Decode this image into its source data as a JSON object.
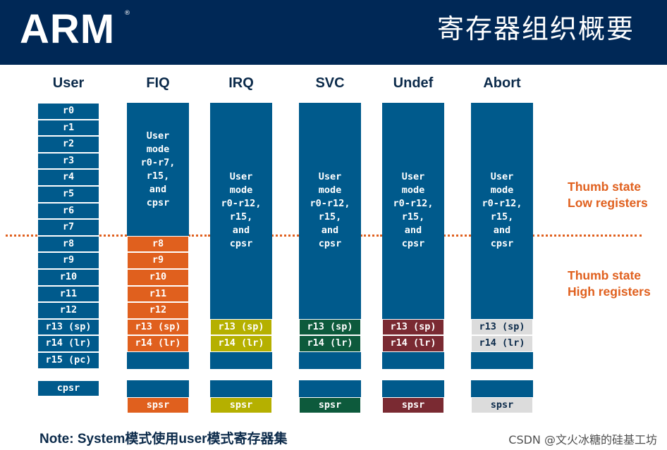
{
  "header": {
    "logo_text": "ARM",
    "logo_mark": "®",
    "title": "寄存器组织概要",
    "background": "#002856"
  },
  "colors": {
    "register_blue": "#005a8c",
    "fiq_banked": "#e0601e",
    "irq_banked": "#b5b000",
    "svc_banked": "#0d5a3c",
    "undef_banked": "#7a2a32",
    "abort_banked": "#dcdcdc",
    "divider": "#e0601e"
  },
  "modes": {
    "user": {
      "label": "User",
      "registers": [
        "r0",
        "r1",
        "r2",
        "r3",
        "r4",
        "r5",
        "r6",
        "r7",
        "r8",
        "r9",
        "r10",
        "r11",
        "r12",
        "r13 (sp)",
        "r14 (lr)",
        "r15 (pc)"
      ],
      "cpsr": "cpsr"
    },
    "fiq": {
      "label": "FIQ",
      "shared": "User\nmode\nr0-r7,\nr15,\nand\ncpsr",
      "banked": [
        "r8",
        "r9",
        "r10",
        "r11",
        "r12",
        "r13 (sp)",
        "r14 (lr)"
      ],
      "spsr": "spsr"
    },
    "irq": {
      "label": "IRQ",
      "shared": "User\nmode\nr0-r12,\nr15,\nand\ncpsr",
      "banked": [
        "r13 (sp)",
        "r14 (lr)"
      ],
      "spsr": "spsr"
    },
    "svc": {
      "label": "SVC",
      "shared": "User\nmode\nr0-r12,\nr15,\nand\ncpsr",
      "banked": [
        "r13 (sp)",
        "r14 (lr)"
      ],
      "spsr": "spsr"
    },
    "undef": {
      "label": "Undef",
      "shared": "User\nmode\nr0-r12,\nr15,\nand\ncpsr",
      "banked": [
        "r13 (sp)",
        "r14 (lr)"
      ],
      "spsr": "spsr"
    },
    "abort": {
      "label": "Abort",
      "shared": "User\nmode\nr0-r12,\nr15,\nand\ncpsr",
      "banked": [
        "r13 (sp)",
        "r14 (lr)"
      ],
      "spsr": "spsr"
    }
  },
  "side_labels": {
    "low": "Thumb state\nLow  registers",
    "high": "Thumb state\nHigh registers"
  },
  "note": "Note: System模式使用user模式寄存器集",
  "watermark": "CSDN @文火冰糖的硅基工坊"
}
